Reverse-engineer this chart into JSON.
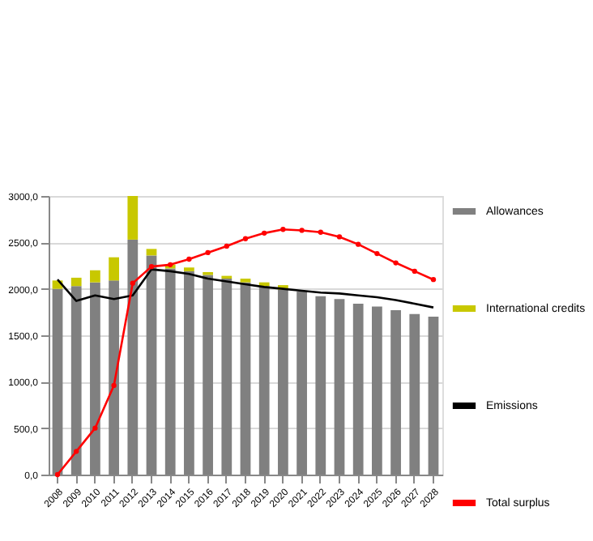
{
  "chart_data": {
    "type": "bar",
    "stacked": true,
    "categories": [
      "2008",
      "2009",
      "2010",
      "2011",
      "2012",
      "2013",
      "2014",
      "2015",
      "2016",
      "2017",
      "2018",
      "2019",
      "2020",
      "2021",
      "2022",
      "2023",
      "2024",
      "2025",
      "2026",
      "2027",
      "2028"
    ],
    "series": [
      {
        "name": "Allowances",
        "color": "#808080",
        "values": [
          2000,
          2030,
          2070,
          2090,
          2530,
          2360,
          2220,
          2190,
          2150,
          2110,
          2070,
          2030,
          1990,
          1970,
          1920,
          1890,
          1840,
          1810,
          1770,
          1730,
          1700
        ]
      },
      {
        "name": "International credits",
        "color": "#c8c800",
        "values": [
          90,
          90,
          130,
          250,
          470,
          70,
          40,
          40,
          30,
          30,
          40,
          40,
          50,
          null,
          null,
          null,
          null,
          null,
          null,
          null,
          null
        ]
      },
      {
        "name": "Emissions",
        "type": "line",
        "color": "#000000",
        "marker": "none",
        "values": [
          2100,
          1870,
          1930,
          1890,
          1930,
          2210,
          2190,
          2160,
          2110,
          2080,
          2050,
          2020,
          2000,
          1980,
          1960,
          1950,
          1930,
          1910,
          1880,
          1840,
          1800
        ]
      },
      {
        "name": "Total surplus",
        "type": "line",
        "color": "#ff0000",
        "marker": "circle",
        "values": [
          0,
          250,
          500,
          960,
          2060,
          2240,
          2260,
          2320,
          2390,
          2460,
          2540,
          2600,
          2640,
          2630,
          2610,
          2560,
          2480,
          2380,
          2280,
          2190,
          2100
        ]
      }
    ],
    "ylim": [
      0,
      3000
    ],
    "yticks": [
      {
        "value": 0,
        "label": "0,0"
      },
      {
        "value": 500,
        "label": "500,0"
      },
      {
        "value": 1000,
        "label": "1000,0"
      },
      {
        "value": 1500,
        "label": "1500,0"
      },
      {
        "value": 2000,
        "label": "2000,0"
      },
      {
        "value": 2500,
        "label": "2500,0"
      },
      {
        "value": 3000,
        "label": "3000,0"
      }
    ],
    "grid": "y",
    "legend": "right"
  }
}
